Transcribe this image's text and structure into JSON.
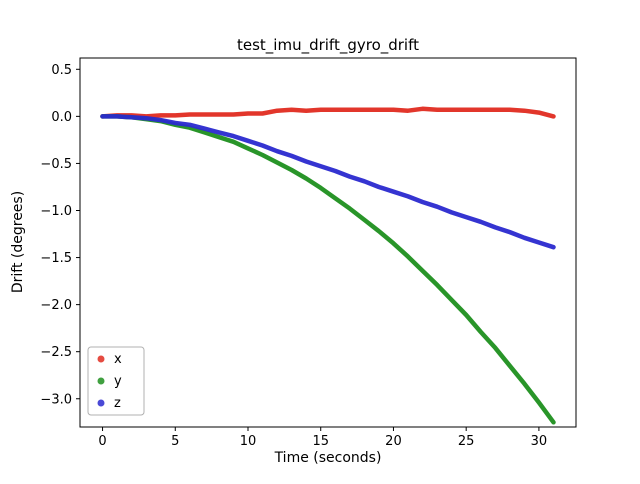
{
  "figure": {
    "background": "#ffffff",
    "spine_color": "#000000",
    "legend_border_color": "#b0b0b0"
  },
  "chart_data": {
    "type": "scatter",
    "title": "test_imu_drift_gyro_drift",
    "xlabel": "Time (seconds)",
    "ylabel": "Drift (degrees)",
    "xlim": [
      -1.55,
      32.55
    ],
    "ylim": [
      -3.3,
      0.62
    ],
    "xticks": [
      0,
      5,
      10,
      15,
      20,
      25,
      30
    ],
    "yticks": [
      0.5,
      0.0,
      -0.5,
      -1.0,
      -1.5,
      -2.0,
      -2.5,
      -3.0
    ],
    "grid": false,
    "legend_position": "lower left",
    "marker": "dot",
    "x": [
      0,
      1,
      2,
      3,
      4,
      5,
      6,
      7,
      8,
      9,
      10,
      11,
      12,
      13,
      14,
      15,
      16,
      17,
      18,
      19,
      20,
      21,
      22,
      23,
      24,
      25,
      26,
      27,
      28,
      29,
      30,
      31
    ],
    "series": [
      {
        "name": "x",
        "color": "#e02b20",
        "values": [
          0.0,
          0.01,
          0.01,
          0.0,
          0.01,
          0.01,
          0.02,
          0.02,
          0.02,
          0.02,
          0.03,
          0.03,
          0.06,
          0.07,
          0.06,
          0.07,
          0.07,
          0.07,
          0.07,
          0.07,
          0.07,
          0.06,
          0.08,
          0.07,
          0.07,
          0.07,
          0.07,
          0.07,
          0.07,
          0.06,
          0.04,
          0.0
        ]
      },
      {
        "name": "y",
        "color": "#1e8f1e",
        "values": [
          0.0,
          0.0,
          -0.01,
          -0.03,
          -0.05,
          -0.09,
          -0.12,
          -0.17,
          -0.22,
          -0.27,
          -0.34,
          -0.41,
          -0.49,
          -0.57,
          -0.66,
          -0.76,
          -0.87,
          -0.98,
          -1.1,
          -1.22,
          -1.35,
          -1.49,
          -1.64,
          -1.79,
          -1.95,
          -2.11,
          -2.29,
          -2.46,
          -2.65,
          -2.84,
          -3.04,
          -3.25
        ]
      },
      {
        "name": "z",
        "color": "#2a29cf",
        "values": [
          0.0,
          0.0,
          -0.01,
          -0.02,
          -0.04,
          -0.07,
          -0.09,
          -0.13,
          -0.17,
          -0.21,
          -0.26,
          -0.31,
          -0.37,
          -0.42,
          -0.48,
          -0.53,
          -0.58,
          -0.64,
          -0.69,
          -0.75,
          -0.8,
          -0.85,
          -0.91,
          -0.96,
          -1.02,
          -1.07,
          -1.12,
          -1.18,
          -1.23,
          -1.29,
          -1.34,
          -1.39
        ]
      }
    ]
  }
}
